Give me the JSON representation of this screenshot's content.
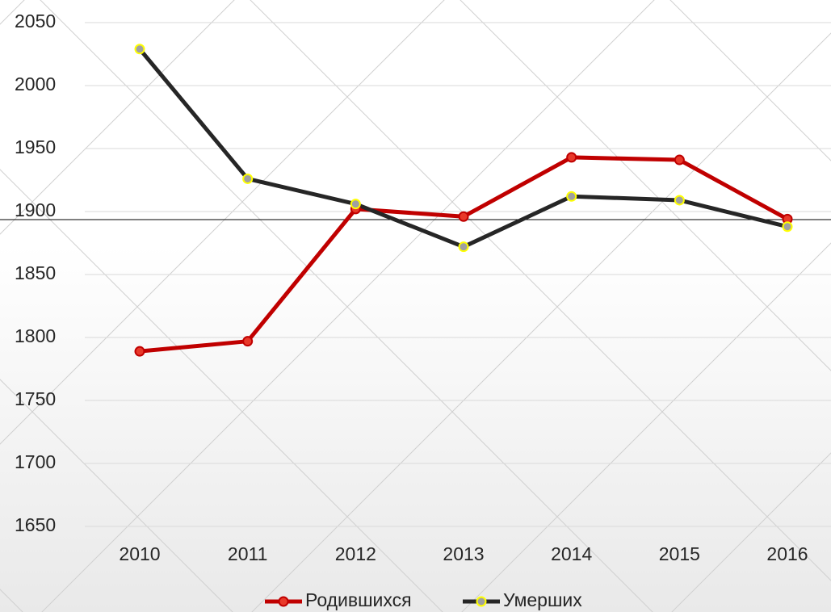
{
  "chart_data": {
    "type": "line",
    "categories": [
      "2010",
      "2011",
      "2012",
      "2013",
      "2014",
      "2015",
      "2016"
    ],
    "series": [
      {
        "name": "Родившихся",
        "color": "#c00000",
        "marker_color": "#e8392a",
        "values": [
          1789,
          1797,
          1902,
          1896,
          1943,
          1941,
          1894
        ]
      },
      {
        "name": "Умерших",
        "color": "#262626",
        "marker_color": "#ffff00",
        "values": [
          2029,
          1926,
          1906,
          1872,
          1912,
          1909,
          1888
        ]
      }
    ],
    "ylim": [
      1650,
      2050
    ],
    "yticks": [
      1650,
      1700,
      1750,
      1800,
      1850,
      1900,
      1950,
      2000,
      2050
    ],
    "grid": true,
    "legend": "bottom"
  }
}
